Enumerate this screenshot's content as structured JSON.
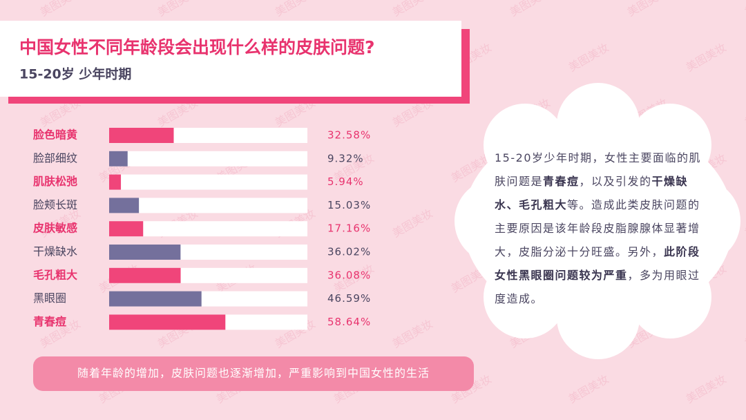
{
  "header": {
    "title": "中国女性不同年龄段会出现什么样的皮肤问题?",
    "subtitle": "15-20岁 少年时期"
  },
  "chart_data": {
    "type": "bar",
    "orientation": "horizontal",
    "categories": [
      "脸色暗黄",
      "脸部细纹",
      "肌肤松弛",
      "脸颊长斑",
      "皮肤敏感",
      "干燥缺水",
      "毛孔粗大",
      "黑眼圈",
      "青春痘"
    ],
    "values": [
      32.58,
      9.32,
      5.94,
      15.03,
      17.16,
      36.02,
      36.08,
      46.59,
      58.64
    ],
    "value_labels": [
      "32.58%",
      "9.32%",
      "5.94%",
      "15.03%",
      "17.16%",
      "36.02%",
      "36.08%",
      "46.59%",
      "58.64%"
    ],
    "colors": [
      "#f0457a",
      "#74709c",
      "#f0457a",
      "#74709c",
      "#f0457a",
      "#74709c",
      "#f0457a",
      "#74709c",
      "#f0457a"
    ],
    "xlim": [
      0,
      100
    ]
  },
  "description": {
    "segments": [
      {
        "text": "15-20岁少年时期，女性主要面临的肌肤问题是",
        "bold": false
      },
      {
        "text": "青春痘",
        "bold": true
      },
      {
        "text": "，以及引发的",
        "bold": false
      },
      {
        "text": "干燥缺水、毛孔粗大",
        "bold": true
      },
      {
        "text": "等。造成此类皮肤问题的主要原因是该年龄段皮脂腺腺体显著增大，皮脂分泌十分旺盛。另外，",
        "bold": false
      },
      {
        "text": "此阶段女性黑眼圈问题较为严重",
        "bold": true
      },
      {
        "text": "，多为用眼过度造成。",
        "bold": false
      }
    ]
  },
  "footer": {
    "text": "随着年龄的增加，皮肤问题也逐渐增加，严重影响到中国女性的生活"
  },
  "watermark": "美图美妆"
}
